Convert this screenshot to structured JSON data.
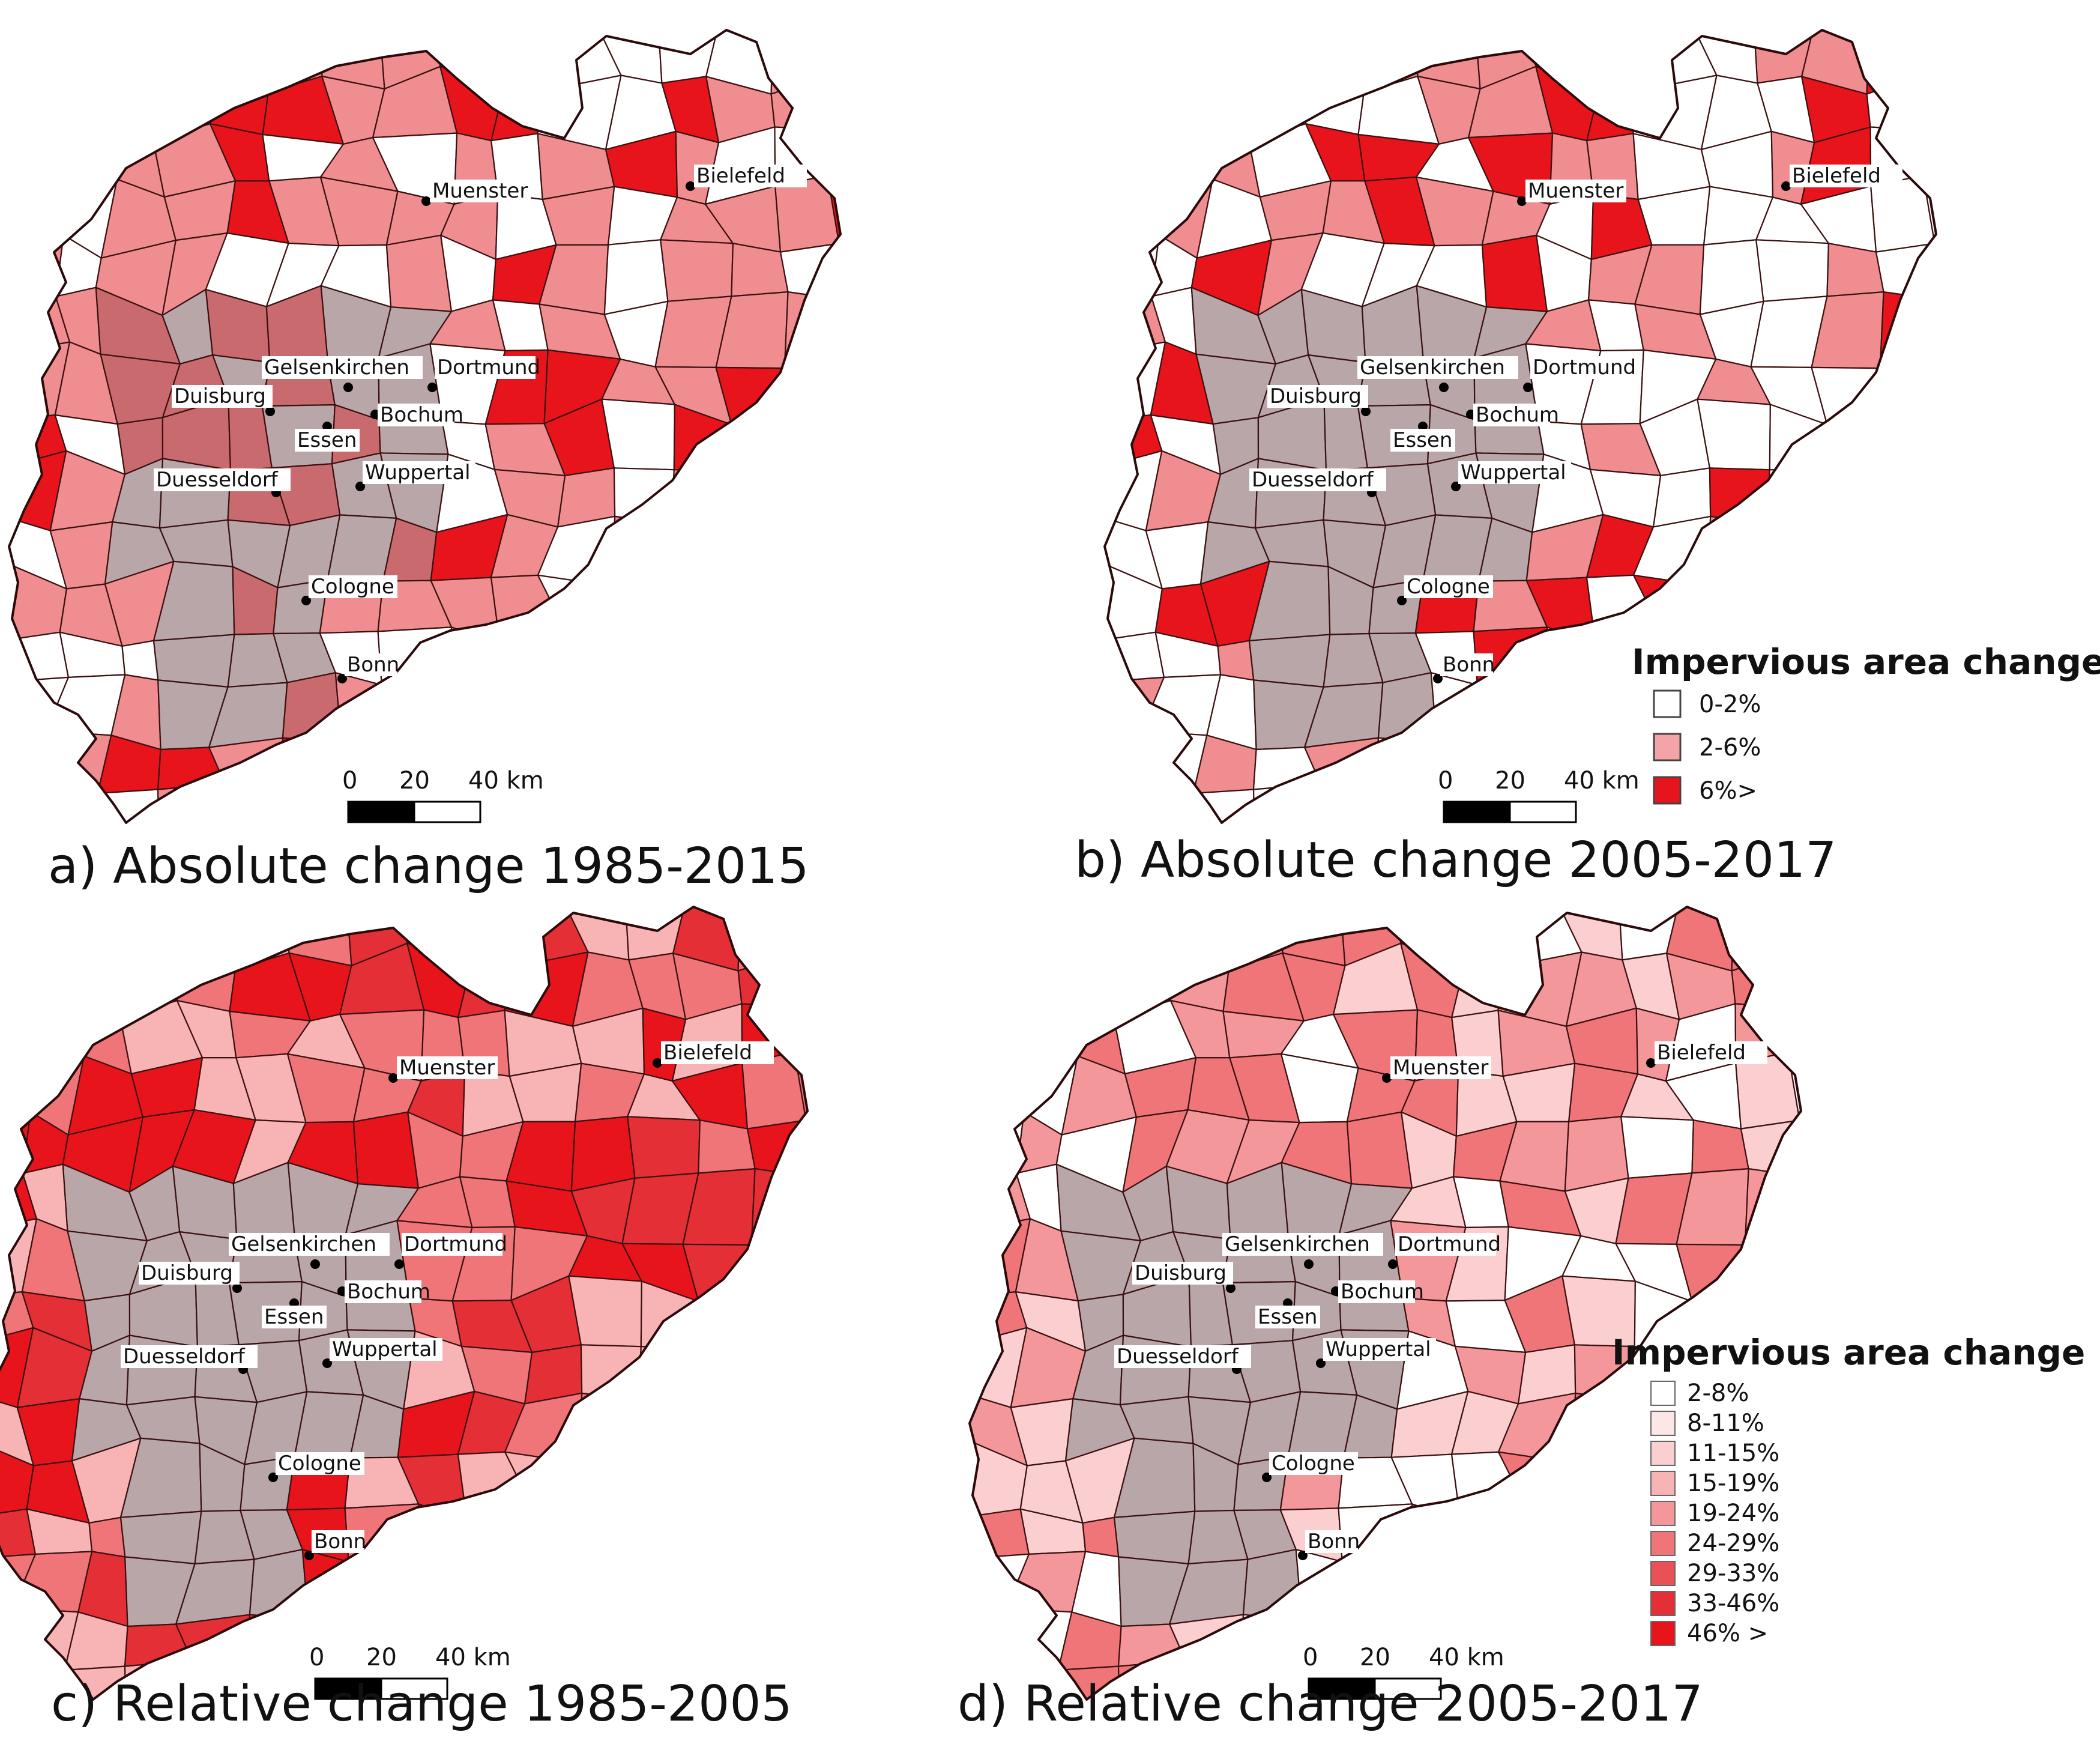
{
  "colors": {
    "class_0_2": "#ffffff",
    "class_2_6": "#f08d90",
    "class_6_plus": "#e8141c",
    "urban_core": "#b8a6a8",
    "urban_core_red": "#c96a6e",
    "rel_2_8": "#ffffff",
    "rel_8_11": "#fde6e6",
    "rel_11_15": "#fbcfd0",
    "rel_15_19": "#f8b3b5",
    "rel_19_24": "#f4979a",
    "rel_24_29": "#ef7579",
    "rel_29_33": "#ea5157",
    "rel_33_46": "#e52f36",
    "rel_46_plus": "#e8141c"
  },
  "panels": [
    {
      "id": "a",
      "title": "a) Absolute change 1985-2015",
      "scale": {
        "ticks": [
          "0",
          "20",
          "40 km"
        ]
      },
      "palette": [
        "#f08d90",
        "#f08d90",
        "#e8141c",
        "#ffffff"
      ],
      "cities": [
        {
          "name": "Muenster"
        },
        {
          "name": "Bielefeld"
        },
        {
          "name": "Gelsenkirchen"
        },
        {
          "name": "Dortmund"
        },
        {
          "name": "Duisburg"
        },
        {
          "name": "Essen"
        },
        {
          "name": "Bochum"
        },
        {
          "name": "Duesseldorf"
        },
        {
          "name": "Wuppertal"
        },
        {
          "name": "Cologne"
        },
        {
          "name": "Bonn"
        }
      ]
    },
    {
      "id": "b",
      "title": "b) Absolute change 2005-2017",
      "scale": {
        "ticks": [
          "0",
          "20",
          "40 km"
        ]
      },
      "palette": [
        "#ffffff",
        "#f08d90",
        "#ffffff",
        "#e8141c"
      ],
      "cities": [
        {
          "name": "Muenster"
        },
        {
          "name": "Bielefeld"
        },
        {
          "name": "Gelsenkirchen"
        },
        {
          "name": "Dortmund"
        },
        {
          "name": "Duisburg"
        },
        {
          "name": "Essen"
        },
        {
          "name": "Bochum"
        },
        {
          "name": "Duesseldorf"
        },
        {
          "name": "Wuppertal"
        },
        {
          "name": "Cologne"
        },
        {
          "name": "Bonn"
        }
      ],
      "legend": {
        "title": "Impervious area change",
        "items": [
          {
            "label": "0-2%",
            "color": "#ffffff"
          },
          {
            "label": "2-6%",
            "color": "#f4a3a6"
          },
          {
            "label": "6%>",
            "color": "#e8141c"
          }
        ]
      }
    },
    {
      "id": "c",
      "title": "c) Relative change 1985-2005",
      "scale": {
        "ticks": [
          "0",
          "20",
          "40 km"
        ]
      },
      "palette": [
        "#e52f36",
        "#ef7579",
        "#e8141c",
        "#f8b3b5"
      ],
      "cities": [
        {
          "name": "Muenster"
        },
        {
          "name": "Bielefeld"
        },
        {
          "name": "Gelsenkirchen"
        },
        {
          "name": "Dortmund"
        },
        {
          "name": "Duisburg"
        },
        {
          "name": "Essen"
        },
        {
          "name": "Bochum"
        },
        {
          "name": "Duesseldorf"
        },
        {
          "name": "Wuppertal"
        },
        {
          "name": "Cologne"
        },
        {
          "name": "Bonn"
        }
      ]
    },
    {
      "id": "d",
      "title": "d) Relative change 2005-2017",
      "scale": {
        "ticks": [
          "0",
          "20",
          "40 km"
        ]
      },
      "palette": [
        "#fbcfd0",
        "#f4979a",
        "#ffffff",
        "#ef7579"
      ],
      "cities": [
        {
          "name": "Muenster"
        },
        {
          "name": "Bielefeld"
        },
        {
          "name": "Gelsenkirchen"
        },
        {
          "name": "Dortmund"
        },
        {
          "name": "Duisburg"
        },
        {
          "name": "Essen"
        },
        {
          "name": "Bochum"
        },
        {
          "name": "Duesseldorf"
        },
        {
          "name": "Wuppertal"
        },
        {
          "name": "Cologne"
        },
        {
          "name": "Bonn"
        }
      ],
      "legend": {
        "title": "Impervious area change",
        "items": [
          {
            "label": "2-8%",
            "color": "#ffffff"
          },
          {
            "label": "8-11%",
            "color": "#fde6e6"
          },
          {
            "label": "11-15%",
            "color": "#fbcfd0"
          },
          {
            "label": "15-19%",
            "color": "#f8b3b5"
          },
          {
            "label": "19-24%",
            "color": "#f4979a"
          },
          {
            "label": "24-29%",
            "color": "#ef7579"
          },
          {
            "label": "29-33%",
            "color": "#ea5157"
          },
          {
            "label": "33-46%",
            "color": "#e52f36"
          },
          {
            "label": "46% >",
            "color": "#e8141c"
          }
        ]
      }
    }
  ]
}
